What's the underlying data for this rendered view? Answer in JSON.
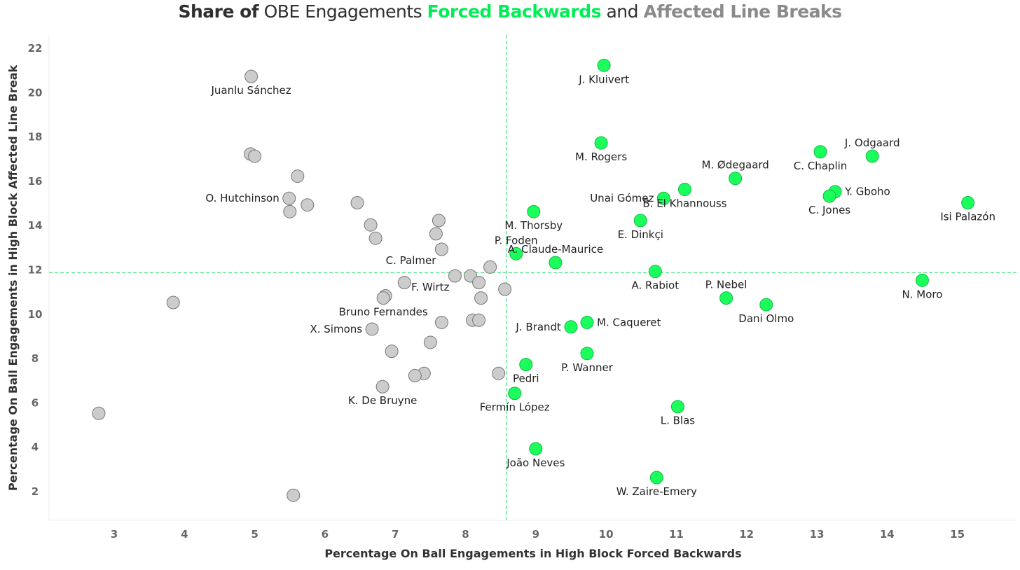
{
  "title": {
    "part1": "Share of",
    "part2": "OBE Engagements",
    "part3": "Forced Backwards",
    "part4": "and",
    "part5": "Affected Line Breaks"
  },
  "colors": {
    "highlight": "#1aff5c",
    "highlight_stroke": "#14b845",
    "gray_point": "#cccccc",
    "gray_stroke": "#777777",
    "reference_line": "#22dd66"
  },
  "chart_data": {
    "type": "scatter",
    "xlabel": "Percentage On Ball Engagements in High Block Forced Backwards",
    "ylabel": "Percentage On Ball Engagements in High Block Affected Line Break",
    "xlim": [
      2.1,
      15.9
    ],
    "ylim": [
      0.8,
      22.4
    ],
    "xticks": [
      3,
      4,
      5,
      6,
      7,
      8,
      9,
      10,
      11,
      12,
      13,
      14,
      15
    ],
    "yticks": [
      2,
      4,
      6,
      8,
      10,
      12,
      14,
      16,
      18,
      20,
      22
    ],
    "reference_x": 8.58,
    "reference_y": 11.85,
    "highlighted": [
      {
        "name": "J. Kluivert",
        "x": 9.97,
        "y": 21.2,
        "label_pos": "below"
      },
      {
        "name": "M. Rogers",
        "x": 9.93,
        "y": 17.7,
        "label_pos": "below"
      },
      {
        "name": "M. Ødegaard",
        "x": 11.84,
        "y": 16.1,
        "label_pos": "above"
      },
      {
        "name": "C. Chaplin",
        "x": 13.05,
        "y": 17.3,
        "label_pos": "below"
      },
      {
        "name": "J. Odgaard",
        "x": 13.79,
        "y": 17.1,
        "label_pos": "above"
      },
      {
        "name": "Unai Gómez",
        "x": 10.82,
        "y": 15.2,
        "label_pos": "left"
      },
      {
        "name": "B. El Khannouss",
        "x": 11.12,
        "y": 15.6,
        "label_pos": "below"
      },
      {
        "name": "Y. Gboho",
        "x": 13.26,
        "y": 15.5,
        "label_pos": "right"
      },
      {
        "name": "C. Jones",
        "x": 13.18,
        "y": 15.3,
        "label_pos": "below"
      },
      {
        "name": "Isi Palazón",
        "x": 15.15,
        "y": 15.0,
        "label_pos": "below"
      },
      {
        "name": "M. Thorsby",
        "x": 8.97,
        "y": 14.6,
        "label_pos": "below"
      },
      {
        "name": "E. Dinkçi",
        "x": 10.49,
        "y": 14.2,
        "label_pos": "below"
      },
      {
        "name": "P. Foden",
        "x": 8.72,
        "y": 12.7,
        "label_pos": "above"
      },
      {
        "name": "A. Claude-Maurice",
        "x": 9.28,
        "y": 12.3,
        "label_pos": "above"
      },
      {
        "name": "A. Rabiot",
        "x": 10.7,
        "y": 11.9,
        "label_pos": "below"
      },
      {
        "name": "N. Moro",
        "x": 14.5,
        "y": 11.5,
        "label_pos": "below"
      },
      {
        "name": "P. Nebel",
        "x": 11.71,
        "y": 10.7,
        "label_pos": "above"
      },
      {
        "name": "Dani Olmo",
        "x": 12.28,
        "y": 10.4,
        "label_pos": "below"
      },
      {
        "name": "J. Brandt",
        "x": 9.5,
        "y": 9.4,
        "label_pos": "left"
      },
      {
        "name": "M. Caqueret",
        "x": 9.73,
        "y": 9.6,
        "label_pos": "right"
      },
      {
        "name": "P. Wanner",
        "x": 9.73,
        "y": 8.2,
        "label_pos": "below"
      },
      {
        "name": "Pedri",
        "x": 8.86,
        "y": 7.7,
        "label_pos": "below"
      },
      {
        "name": "Fermín López",
        "x": 8.7,
        "y": 6.4,
        "label_pos": "below"
      },
      {
        "name": "L. Blas",
        "x": 11.02,
        "y": 5.8,
        "label_pos": "below"
      },
      {
        "name": "João Neves",
        "x": 9.0,
        "y": 3.9,
        "label_pos": "below"
      },
      {
        "name": "W. Zaire-Emery",
        "x": 10.72,
        "y": 2.6,
        "label_pos": "below"
      }
    ],
    "labeled_others": [
      {
        "name": "Juanlu Sánchez",
        "x": 4.95,
        "y": 20.7,
        "label_pos": "below"
      },
      {
        "name": "O. Hutchinson",
        "x": 5.49,
        "y": 15.2,
        "label_pos": "left"
      },
      {
        "name": "C. Palmer",
        "x": 7.66,
        "y": 12.9,
        "label_pos": "below-left"
      },
      {
        "name": "F. Wirtz",
        "x": 7.85,
        "y": 11.7,
        "label_pos": "below-left"
      },
      {
        "name": "Bruno Fernandes",
        "x": 6.83,
        "y": 10.7,
        "label_pos": "below"
      },
      {
        "name": "X. Simons",
        "x": 6.67,
        "y": 9.3,
        "label_pos": "left"
      },
      {
        "name": "K. De Bruyne",
        "x": 6.82,
        "y": 6.7,
        "label_pos": "below"
      }
    ],
    "others": [
      {
        "x": 4.94,
        "y": 17.2
      },
      {
        "x": 5.0,
        "y": 17.1
      },
      {
        "x": 5.61,
        "y": 16.2
      },
      {
        "x": 5.5,
        "y": 14.6
      },
      {
        "x": 5.75,
        "y": 14.9
      },
      {
        "x": 6.46,
        "y": 15.0
      },
      {
        "x": 6.65,
        "y": 14.0
      },
      {
        "x": 6.72,
        "y": 13.4
      },
      {
        "x": 7.62,
        "y": 14.2
      },
      {
        "x": 7.58,
        "y": 13.6
      },
      {
        "x": 8.35,
        "y": 12.1
      },
      {
        "x": 8.07,
        "y": 11.7
      },
      {
        "x": 8.19,
        "y": 11.4
      },
      {
        "x": 7.13,
        "y": 11.4
      },
      {
        "x": 6.86,
        "y": 10.8
      },
      {
        "x": 8.22,
        "y": 10.7
      },
      {
        "x": 8.56,
        "y": 11.1
      },
      {
        "x": 7.66,
        "y": 9.6
      },
      {
        "x": 8.1,
        "y": 9.7
      },
      {
        "x": 8.19,
        "y": 9.7
      },
      {
        "x": 7.5,
        "y": 8.7
      },
      {
        "x": 6.95,
        "y": 8.3
      },
      {
        "x": 7.41,
        "y": 7.3
      },
      {
        "x": 7.28,
        "y": 7.2
      },
      {
        "x": 8.47,
        "y": 7.3
      },
      {
        "x": 3.84,
        "y": 10.5
      },
      {
        "x": 2.78,
        "y": 5.5
      },
      {
        "x": 5.55,
        "y": 1.8
      }
    ]
  }
}
